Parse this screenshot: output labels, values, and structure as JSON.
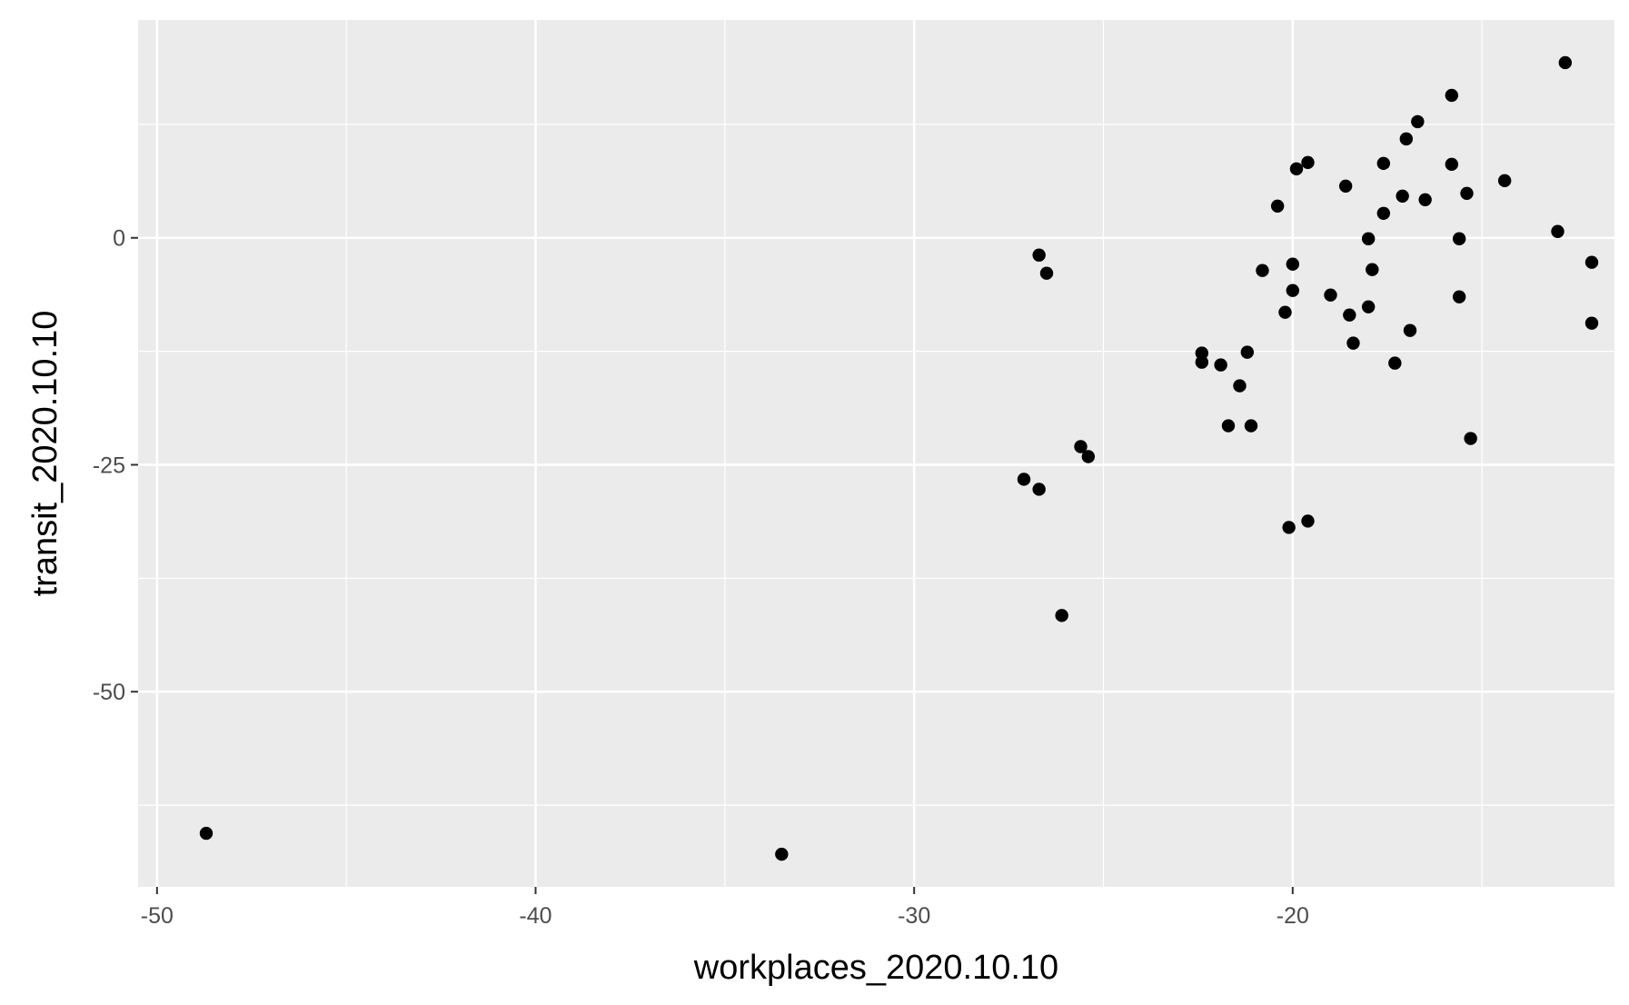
{
  "chart_data": {
    "type": "scatter",
    "xlabel": "workplaces_2020.10.10",
    "ylabel": "transit_2020.10.10",
    "xlim": [
      -50.5,
      -11.5
    ],
    "ylim": [
      -71.5,
      24
    ],
    "x_ticks": [
      -50,
      -40,
      -30,
      -20
    ],
    "x_tick_labels": [
      "-50",
      "-40",
      "-30",
      "-20"
    ],
    "x_minor": [
      -45,
      -35,
      -25,
      -15
    ],
    "y_ticks": [
      0,
      -25,
      -50
    ],
    "y_tick_labels": [
      "0",
      "-25",
      "-50"
    ],
    "y_minor": [
      12.5,
      -12.5,
      -37.5,
      -62.5
    ],
    "grid": true,
    "panel_color": "#ebebeb",
    "grid_color": "#ffffff",
    "point_color": "#000000",
    "points": [
      {
        "x": -48.7,
        "y": -65.6
      },
      {
        "x": -33.5,
        "y": -67.9
      },
      {
        "x": -27.1,
        "y": -26.6
      },
      {
        "x": -26.7,
        "y": -27.7
      },
      {
        "x": -26.7,
        "y": -1.9
      },
      {
        "x": -26.5,
        "y": -3.9
      },
      {
        "x": -26.1,
        "y": -41.6
      },
      {
        "x": -25.6,
        "y": -23.0
      },
      {
        "x": -25.4,
        "y": -24.1
      },
      {
        "x": -22.4,
        "y": -12.7
      },
      {
        "x": -22.4,
        "y": -13.7
      },
      {
        "x": -21.9,
        "y": -14.0
      },
      {
        "x": -21.7,
        "y": -20.7
      },
      {
        "x": -21.4,
        "y": -16.3
      },
      {
        "x": -21.2,
        "y": -12.6
      },
      {
        "x": -21.1,
        "y": -20.7
      },
      {
        "x": -20.8,
        "y": -3.6
      },
      {
        "x": -20.4,
        "y": 3.5
      },
      {
        "x": -20.2,
        "y": -8.2
      },
      {
        "x": -20.1,
        "y": -31.9
      },
      {
        "x": -20.0,
        "y": -2.9
      },
      {
        "x": -20.0,
        "y": -5.8
      },
      {
        "x": -19.9,
        "y": 7.6
      },
      {
        "x": -19.6,
        "y": -31.2
      },
      {
        "x": -19.6,
        "y": 8.3
      },
      {
        "x": -19.0,
        "y": -6.3
      },
      {
        "x": -18.6,
        "y": 5.7
      },
      {
        "x": -18.5,
        "y": -8.5
      },
      {
        "x": -18.4,
        "y": -11.6
      },
      {
        "x": -18.0,
        "y": -7.6
      },
      {
        "x": -18.0,
        "y": -0.1
      },
      {
        "x": -17.9,
        "y": -3.5
      },
      {
        "x": -17.6,
        "y": 2.7
      },
      {
        "x": -17.6,
        "y": 8.2
      },
      {
        "x": -17.3,
        "y": -13.8
      },
      {
        "x": -17.1,
        "y": 4.6
      },
      {
        "x": -17.0,
        "y": 10.9
      },
      {
        "x": -16.9,
        "y": -10.2
      },
      {
        "x": -16.7,
        "y": 12.8
      },
      {
        "x": -16.5,
        "y": 4.2
      },
      {
        "x": -15.8,
        "y": 15.7
      },
      {
        "x": -15.8,
        "y": 8.1
      },
      {
        "x": -15.6,
        "y": -0.1
      },
      {
        "x": -15.6,
        "y": -6.5
      },
      {
        "x": -15.4,
        "y": 4.9
      },
      {
        "x": -15.3,
        "y": -22.1
      },
      {
        "x": -14.4,
        "y": 6.3
      },
      {
        "x": -13.0,
        "y": 0.7
      },
      {
        "x": -12.8,
        "y": 19.3
      },
      {
        "x": -12.1,
        "y": -2.7
      },
      {
        "x": -12.1,
        "y": -9.4
      }
    ]
  }
}
